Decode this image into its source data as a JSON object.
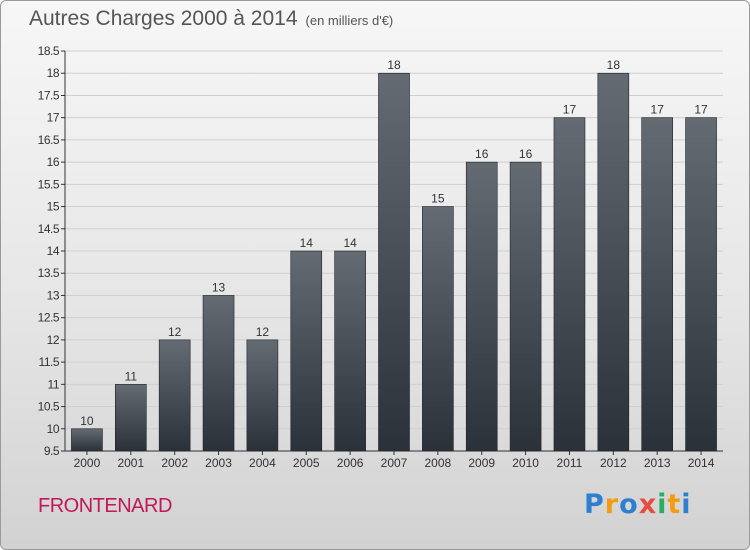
{
  "title": "Autres Charges 2000 à 2014",
  "unit_label": "(en milliers d'€)",
  "place_name": "FRONTENARD",
  "logo": {
    "text": "Proxiti",
    "letter_colors": [
      "#2e7fd1",
      "#f39c12",
      "#2e7fd1",
      "#e74c3c",
      "#27ae60",
      "#f39c12",
      "#2e7fd1"
    ]
  },
  "colors": {
    "bar_top": "#646b73",
    "bar_bottom": "#2b3138",
    "axis": "#333333",
    "grid": "#cfcfcf"
  },
  "chart_data": {
    "type": "bar",
    "title": "Autres Charges 2000 à 2014",
    "xlabel": "",
    "ylabel": "",
    "categories": [
      "2000",
      "2001",
      "2002",
      "2003",
      "2004",
      "2005",
      "2006",
      "2007",
      "2008",
      "2009",
      "2010",
      "2011",
      "2012",
      "2013",
      "2014"
    ],
    "values": [
      10,
      11,
      12,
      13,
      12,
      14,
      14,
      18,
      15,
      16,
      16,
      17,
      18,
      17,
      17
    ],
    "ylim": [
      9.5,
      18.5
    ],
    "yticks": [
      "9.5",
      "10",
      "10.5",
      "11",
      "11.5",
      "12",
      "12.5",
      "13",
      "13.5",
      "14",
      "14.5",
      "15",
      "15.5",
      "16",
      "16.5",
      "17",
      "17.5",
      "18",
      "18.5"
    ],
    "grid": true
  }
}
